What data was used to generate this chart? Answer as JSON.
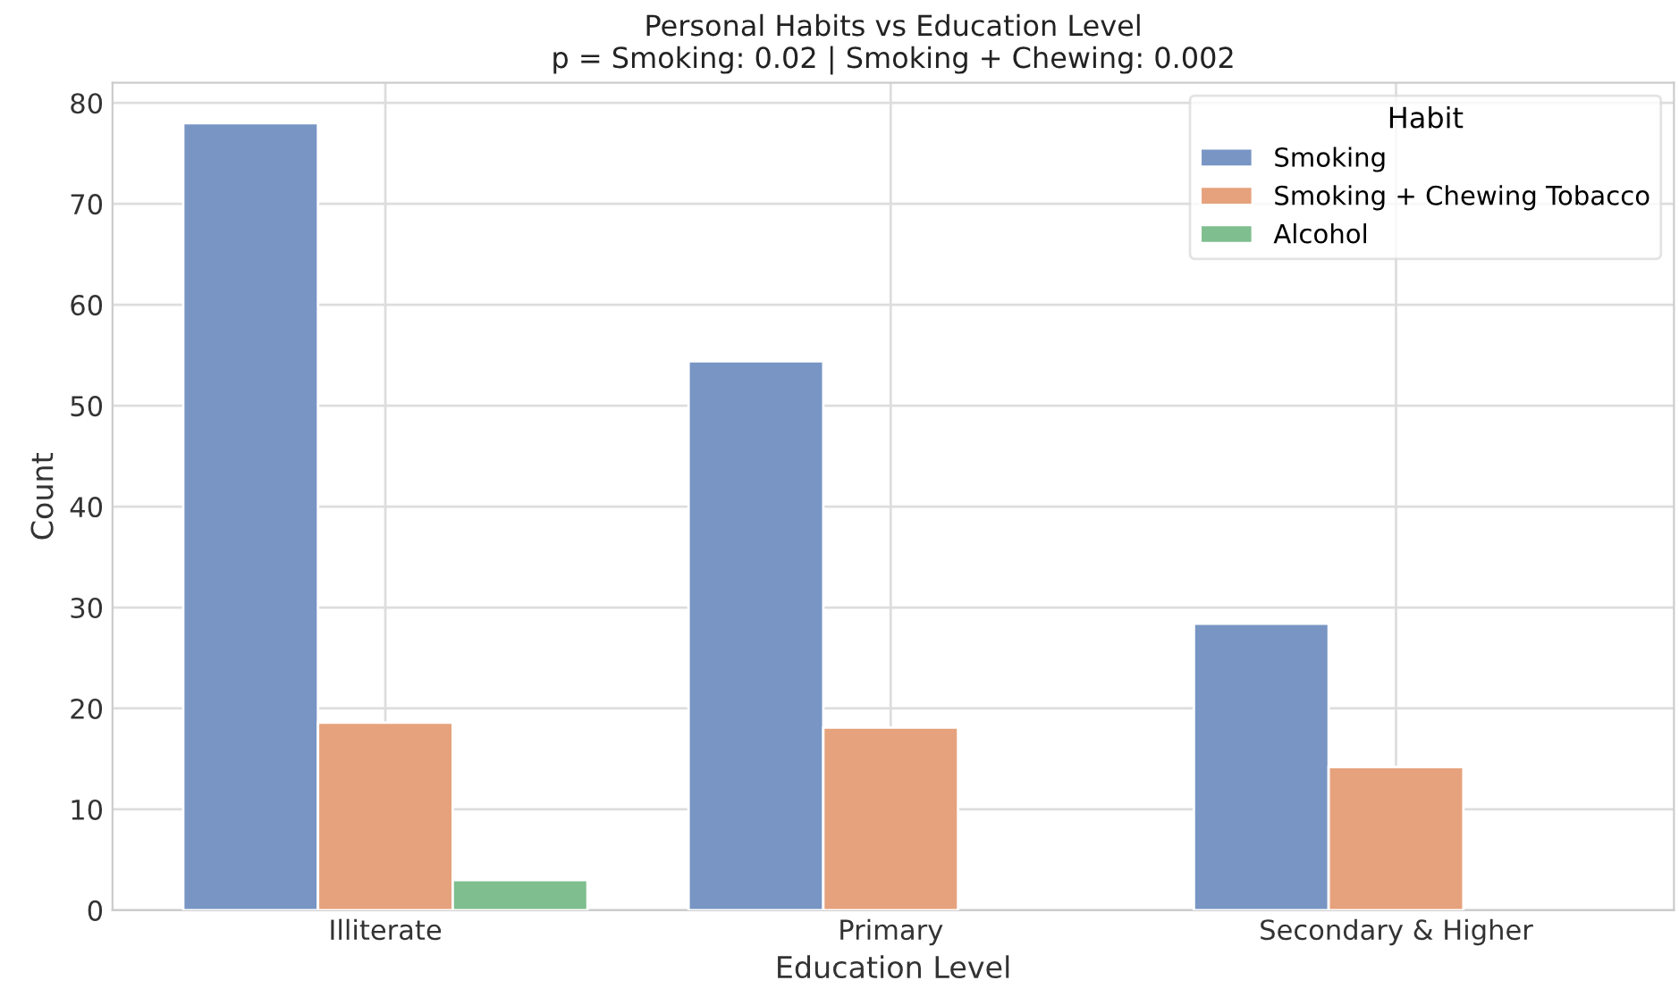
{
  "chart_data": {
    "type": "bar",
    "title": "Personal Habits vs Education Level\np = Smoking: 0.02 | Smoking + Chewing: 0.002",
    "xlabel": "Education Level",
    "ylabel": "Count",
    "legend_title": "Habit",
    "categories": [
      "Illiterate",
      "Primary",
      "Secondary & Higher"
    ],
    "series": [
      {
        "name": "Smoking",
        "color": "#7895c4",
        "values": [
          78.0,
          54.4,
          28.4
        ]
      },
      {
        "name": "Smoking + Chewing Tobacco",
        "color": "#e5a27d",
        "values": [
          18.6,
          18.1,
          14.2
        ]
      },
      {
        "name": "Alcohol",
        "color": "#7fbe8e",
        "values": [
          3.0,
          null,
          null
        ]
      }
    ],
    "ylim": [
      0,
      82
    ],
    "yticks": [
      0,
      10,
      20,
      30,
      40,
      50,
      60,
      70,
      80
    ],
    "grid": true,
    "legend": "top right"
  }
}
